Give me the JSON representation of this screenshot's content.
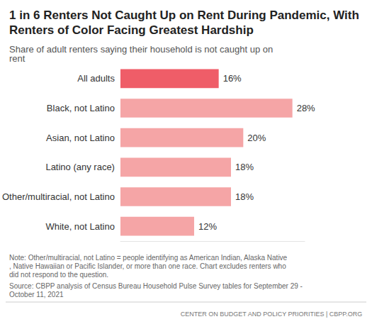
{
  "chart_data": {
    "type": "bar",
    "title": "1 in 6 Renters Not Caught Up on Rent During Pandemic, With Renters of Color Facing Greatest Hardship",
    "subtitle": "Share of adult renters saying their household is not caught up on rent",
    "note": "Note: Other/multiracial, not Latino = people identifying as American Indian, Alaska Native, Native Hawaiian or Pacific Islander, or more than one race. Chart excludes renters who did not respond to the question.",
    "source": "Source: CBPP analysis of Census Bureau Household Pulse Survey tables for September 29 - October 11, 2021",
    "credit": "CENTER ON BUDGET AND POLICY PRIORITIES | CBPP.ORG",
    "categories": [
      "All adults",
      "Black, not Latino",
      "Asian, not Latino",
      "Latino (any race)",
      "Other/multiracial, not Latino",
      "White, not Latino"
    ],
    "values": [
      16,
      28,
      20,
      18,
      18,
      12
    ],
    "value_labels": [
      "16%",
      "28%",
      "20%",
      "18%",
      "18%",
      "12%"
    ],
    "colors": [
      "#ef5d68",
      "#f5a5a6",
      "#f5a5a6",
      "#f5a5a6",
      "#f5a5a6",
      "#f5a5a6"
    ],
    "orientation": "horizontal",
    "data_labels": true,
    "tick_labels": "y",
    "xlim": [
      0,
      30
    ]
  }
}
